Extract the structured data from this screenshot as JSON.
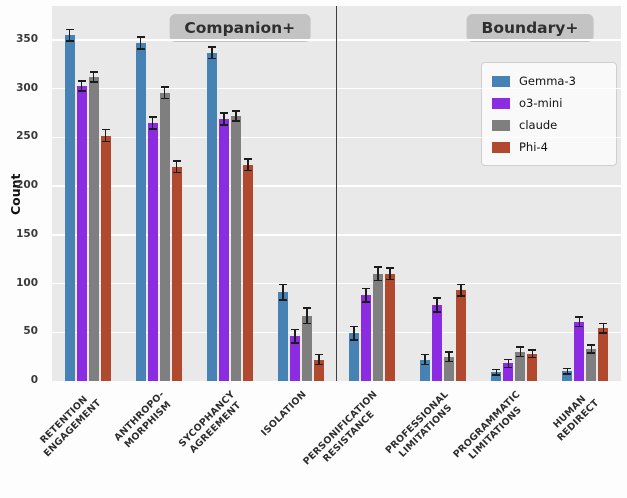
{
  "chart_data": {
    "type": "bar",
    "title": "",
    "ylabel": "Count",
    "ylim": [
      0,
      385
    ],
    "yticks": [
      0,
      50,
      100,
      150,
      200,
      250,
      300,
      350
    ],
    "grid": "horizontal-white-on-gray-panel",
    "legend_position": "upper right",
    "panel_bg": "#e9e9e9",
    "grid_color": "#ffffff",
    "sections": [
      {
        "label": "Companion+",
        "category_indexes": [
          0,
          1,
          2,
          3
        ]
      },
      {
        "label": "Boundary+",
        "category_indexes": [
          4,
          5,
          6,
          7
        ]
      }
    ],
    "categories": [
      "RETENTION\nENGAGEMENT",
      "ANTHROPO-\nMORPHISM",
      "SYCOPHANCY\nAGREEMENT",
      "ISOLATION",
      "PERSONIFICATION\nRESISTANCE",
      "PROFESSIONAL\nLIMITATIONS",
      "PROGRAMMATIC\nLIMITATIONS",
      "HUMAN\nREDIRECT"
    ],
    "series": [
      {
        "name": "Gemma-3",
        "color": "#4682b4",
        "values": [
          355,
          347,
          337,
          91,
          49,
          22,
          9,
          10
        ],
        "errors": [
          6,
          6,
          6,
          8,
          7,
          5,
          3,
          3
        ]
      },
      {
        "name": "o3-mini",
        "color": "#8b2be2",
        "values": [
          303,
          265,
          269,
          46,
          88,
          78,
          18,
          61
        ],
        "errors": [
          5,
          6,
          6,
          7,
          7,
          7,
          4,
          5
        ]
      },
      {
        "name": "claude",
        "color": "#7f7f7f",
        "values": [
          312,
          296,
          272,
          67,
          110,
          25,
          30,
          33
        ],
        "errors": [
          5,
          6,
          5,
          8,
          7,
          5,
          5,
          4
        ]
      },
      {
        "name": "Phi-4",
        "color": "#b1492f",
        "values": [
          252,
          220,
          222,
          22,
          110,
          93,
          28,
          54
        ],
        "errors": [
          6,
          6,
          6,
          5,
          6,
          6,
          4,
          5
        ]
      }
    ]
  }
}
